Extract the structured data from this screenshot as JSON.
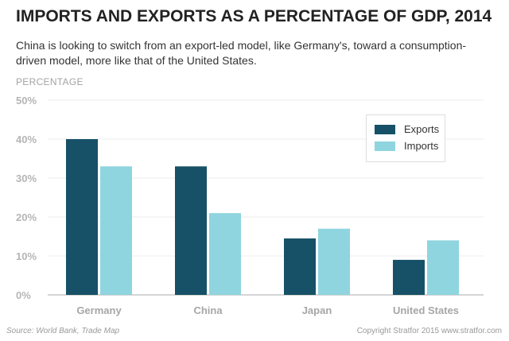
{
  "title": "IMPORTS AND EXPORTS AS A PERCENTAGE OF GDP, 2014",
  "subtitle": "China is looking to switch from an export-led model, like Germany's, toward a consumption-driven model, more like that of the United States.",
  "footer": {
    "source": "Source: World Bank, Trade Map",
    "copyright": "Copyright Stratfor 2015   www.stratfor.com"
  },
  "chart_data": {
    "type": "bar",
    "ylabel": "PERCENTAGE",
    "categories": [
      "Germany",
      "China",
      "Japan",
      "United States"
    ],
    "series": [
      {
        "name": "Exports",
        "color": "#175167",
        "values": [
          40,
          33,
          14.5,
          9
        ]
      },
      {
        "name": "Imports",
        "color": "#8fd5df",
        "values": [
          33,
          21,
          17,
          14
        ]
      }
    ],
    "ylim": [
      0,
      50
    ],
    "yticks": [
      0,
      10,
      20,
      30,
      40,
      50
    ],
    "ytick_labels": [
      "0%",
      "10%",
      "20%",
      "30%",
      "40%",
      "50%"
    ],
    "grid": true,
    "legend_position": "top-right"
  }
}
